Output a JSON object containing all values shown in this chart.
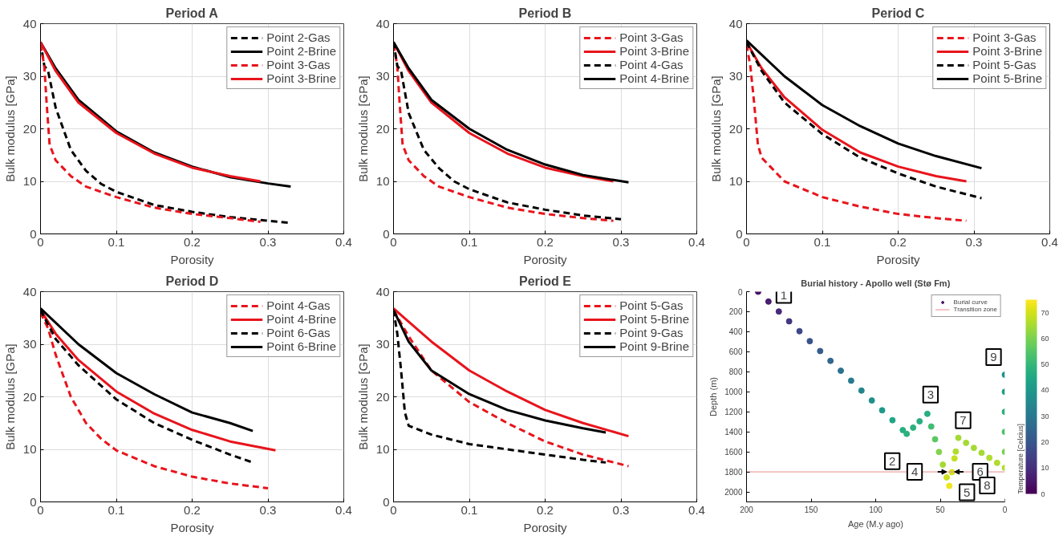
{
  "chart_data": [
    {
      "type": "line",
      "title": "Period A",
      "xlabel": "Porosity",
      "ylabel": "Bulk modulus [GPa]",
      "xlim": [
        0,
        0.4
      ],
      "ylim": [
        0,
        40
      ],
      "xticks": [
        0,
        0.1,
        0.2,
        0.3,
        0.4
      ],
      "yticks": [
        0,
        10,
        20,
        30,
        40
      ],
      "grid": true,
      "legend": "top right",
      "series": [
        {
          "name": "Point 2-Gas",
          "color": "#000000",
          "line_style": "dashed",
          "x": [
            0,
            0.005,
            0.01,
            0.02,
            0.04,
            0.06,
            0.08,
            0.1,
            0.15,
            0.2,
            0.25,
            0.3,
            0.33
          ],
          "values": [
            36.5,
            32,
            31,
            24,
            16,
            12,
            9.5,
            8,
            5.5,
            4.2,
            3.2,
            2.5,
            2.1
          ]
        },
        {
          "name": "Point 2-Brine",
          "color": "#000000",
          "line_style": "solid",
          "x": [
            0,
            0.02,
            0.05,
            0.1,
            0.15,
            0.2,
            0.25,
            0.3,
            0.33
          ],
          "values": [
            36.5,
            31.5,
            25.5,
            19.5,
            15.5,
            12.8,
            10.8,
            9.6,
            9
          ]
        },
        {
          "name": "Point 3-Gas",
          "color": "#e8141c",
          "line_style": "dashed",
          "x": [
            0,
            0.005,
            0.008,
            0.012,
            0.02,
            0.04,
            0.06,
            0.1,
            0.15,
            0.2,
            0.25,
            0.29
          ],
          "values": [
            36,
            32,
            25,
            17,
            14,
            11,
            9,
            7,
            5,
            3.8,
            3,
            2.3
          ]
        },
        {
          "name": "Point 3-Brine",
          "color": "#e8141c",
          "line_style": "solid",
          "x": [
            0,
            0.02,
            0.05,
            0.1,
            0.15,
            0.2,
            0.25,
            0.29
          ],
          "values": [
            36.5,
            31,
            25,
            19.2,
            15.3,
            12.6,
            11,
            10
          ]
        }
      ]
    },
    {
      "type": "line",
      "title": "Period B",
      "xlabel": "Porosity",
      "ylabel": "Bulk modulus [GPa]",
      "xlim": [
        0,
        0.4
      ],
      "ylim": [
        0,
        40
      ],
      "xticks": [
        0,
        0.1,
        0.2,
        0.3,
        0.4
      ],
      "yticks": [
        0,
        10,
        20,
        30,
        40
      ],
      "grid": true,
      "legend": "top right",
      "series": [
        {
          "name": "Point 3-Gas",
          "color": "#e8141c",
          "line_style": "dashed",
          "x": [
            0,
            0.005,
            0.008,
            0.012,
            0.02,
            0.04,
            0.06,
            0.1,
            0.15,
            0.2,
            0.25,
            0.29
          ],
          "values": [
            36,
            32,
            25,
            17,
            14,
            11,
            9,
            7,
            5,
            3.8,
            3,
            2.5
          ]
        },
        {
          "name": "Point 3-Brine",
          "color": "#e8141c",
          "line_style": "solid",
          "x": [
            0,
            0.02,
            0.05,
            0.1,
            0.15,
            0.2,
            0.25,
            0.29
          ],
          "values": [
            36.5,
            31,
            25,
            19.2,
            15.3,
            12.6,
            11,
            10
          ]
        },
        {
          "name": "Point 4-Gas",
          "color": "#000000",
          "line_style": "dashed",
          "x": [
            0,
            0.005,
            0.01,
            0.02,
            0.04,
            0.06,
            0.08,
            0.1,
            0.15,
            0.2,
            0.25,
            0.3
          ],
          "values": [
            36.5,
            32,
            31,
            23,
            16,
            12.5,
            10,
            8.5,
            6,
            4.6,
            3.5,
            2.8
          ]
        },
        {
          "name": "Point 4-Brine",
          "color": "#000000",
          "line_style": "solid",
          "x": [
            0,
            0.02,
            0.05,
            0.1,
            0.15,
            0.2,
            0.25,
            0.31
          ],
          "values": [
            36.5,
            31.5,
            25.5,
            20,
            16,
            13.2,
            11.2,
            9.8
          ]
        }
      ]
    },
    {
      "type": "line",
      "title": "Period C",
      "xlabel": "Porosity",
      "ylabel": "Bulk modulus [GPa]",
      "xlim": [
        0,
        0.4
      ],
      "ylim": [
        0,
        40
      ],
      "xticks": [
        0,
        0.1,
        0.2,
        0.3,
        0.4
      ],
      "yticks": [
        0,
        10,
        20,
        30,
        40
      ],
      "grid": true,
      "legend": "top right",
      "series": [
        {
          "name": "Point 3-Gas",
          "color": "#e8141c",
          "line_style": "dashed",
          "x": [
            0,
            0.005,
            0.01,
            0.015,
            0.02,
            0.05,
            0.1,
            0.15,
            0.2,
            0.25,
            0.29
          ],
          "values": [
            36,
            32,
            25,
            17,
            14.5,
            10,
            7,
            5.2,
            3.8,
            3,
            2.5
          ]
        },
        {
          "name": "Point 3-Brine",
          "color": "#e8141c",
          "line_style": "solid",
          "x": [
            0,
            0.02,
            0.05,
            0.1,
            0.15,
            0.2,
            0.25,
            0.29
          ],
          "values": [
            36.5,
            31.5,
            26,
            19.8,
            15.5,
            12.8,
            11,
            10
          ]
        },
        {
          "name": "Point 5-Gas",
          "color": "#000000",
          "line_style": "dashed",
          "x": [
            0,
            0.02,
            0.05,
            0.1,
            0.15,
            0.2,
            0.25,
            0.31
          ],
          "values": [
            36.5,
            31,
            25,
            19,
            14.5,
            11.5,
            9,
            6.8
          ]
        },
        {
          "name": "Point 5-Brine",
          "color": "#000000",
          "line_style": "solid",
          "x": [
            0,
            0.05,
            0.1,
            0.15,
            0.2,
            0.25,
            0.31
          ],
          "values": [
            36.8,
            30,
            24.5,
            20.5,
            17.2,
            14.8,
            12.5
          ]
        }
      ]
    },
    {
      "type": "line",
      "title": "Period D",
      "xlabel": "Porosity",
      "ylabel": "Bulk modulus [GPa]",
      "xlim": [
        0,
        0.4
      ],
      "ylim": [
        0,
        40
      ],
      "xticks": [
        0,
        0.1,
        0.2,
        0.3,
        0.4
      ],
      "yticks": [
        0,
        10,
        20,
        30,
        40
      ],
      "grid": true,
      "legend": "top right",
      "series": [
        {
          "name": "Point 4-Gas",
          "color": "#e8141c",
          "line_style": "dashed",
          "x": [
            0,
            0.01,
            0.02,
            0.04,
            0.06,
            0.08,
            0.1,
            0.15,
            0.2,
            0.25,
            0.3
          ],
          "values": [
            36,
            33,
            28,
            20,
            15,
            12,
            9.8,
            6.8,
            4.8,
            3.5,
            2.6
          ]
        },
        {
          "name": "Point 4-Brine",
          "color": "#e8141c",
          "line_style": "solid",
          "x": [
            0,
            0.02,
            0.05,
            0.1,
            0.15,
            0.2,
            0.25,
            0.31
          ],
          "values": [
            36.5,
            32,
            27,
            21,
            16.8,
            13.7,
            11.5,
            9.8
          ]
        },
        {
          "name": "Point 6-Gas",
          "color": "#000000",
          "line_style": "dashed",
          "x": [
            0,
            0.02,
            0.05,
            0.1,
            0.15,
            0.2,
            0.25,
            0.28
          ],
          "values": [
            36.5,
            31,
            26,
            19.5,
            15,
            11.8,
            9,
            7.5
          ]
        },
        {
          "name": "Point 6-Brine",
          "color": "#000000",
          "line_style": "solid",
          "x": [
            0,
            0.05,
            0.1,
            0.15,
            0.2,
            0.25,
            0.28
          ],
          "values": [
            36.8,
            30,
            24.5,
            20.5,
            17,
            15,
            13.5
          ]
        }
      ]
    },
    {
      "type": "line",
      "title": "Period E",
      "xlabel": "Porosity",
      "ylabel": "Bulk modulus [GPa]",
      "xlim": [
        0,
        0.4
      ],
      "ylim": [
        0,
        40
      ],
      "xticks": [
        0,
        0.1,
        0.2,
        0.3,
        0.4
      ],
      "yticks": [
        0,
        10,
        20,
        30,
        40
      ],
      "grid": true,
      "legend": "top right",
      "series": [
        {
          "name": "Point 5-Gas",
          "color": "#e8141c",
          "line_style": "dashed",
          "x": [
            0,
            0.02,
            0.05,
            0.1,
            0.15,
            0.2,
            0.25,
            0.31
          ],
          "values": [
            36.5,
            31.5,
            25,
            19,
            15,
            11.5,
            9,
            6.8
          ]
        },
        {
          "name": "Point 5-Brine",
          "color": "#e8141c",
          "line_style": "solid",
          "x": [
            0,
            0.05,
            0.1,
            0.15,
            0.2,
            0.25,
            0.31
          ],
          "values": [
            36.8,
            30.5,
            25,
            21,
            17.5,
            15,
            12.5
          ]
        },
        {
          "name": "Point 9-Gas",
          "color": "#000000",
          "line_style": "dashed",
          "x": [
            0,
            0.005,
            0.01,
            0.015,
            0.02,
            0.05,
            0.1,
            0.15,
            0.2,
            0.25,
            0.28
          ],
          "values": [
            36.5,
            32,
            25,
            17,
            14.5,
            12.8,
            11,
            10,
            9,
            8,
            7.5
          ]
        },
        {
          "name": "Point 9-Brine",
          "color": "#000000",
          "line_style": "solid",
          "x": [
            0,
            0.02,
            0.05,
            0.1,
            0.15,
            0.2,
            0.25,
            0.28
          ],
          "values": [
            36.5,
            30.5,
            25,
            20.5,
            17.5,
            15.5,
            14,
            13.2
          ]
        }
      ]
    },
    {
      "type": "scatter",
      "marker": "circle",
      "title": "Burial history - Apollo well (Stø Fm)",
      "xlabel": "Age (M.y ago)",
      "ylabel": "Depth (m)",
      "clabel": "Temperature [Celcius]",
      "xlim": [
        200,
        0
      ],
      "ylim": [
        2100,
        0
      ],
      "xticks": [
        200,
        150,
        100,
        50,
        0
      ],
      "yticks": [
        0,
        200,
        400,
        600,
        800,
        1000,
        1200,
        1400,
        1600,
        1800,
        2000
      ],
      "clim": [
        0,
        75
      ],
      "cticks": [
        0,
        10,
        20,
        30,
        40,
        50,
        60,
        70
      ],
      "grid": false,
      "legend": "top right",
      "series": [
        {
          "name": "Burial curve",
          "x": [
            191,
            183,
            175,
            167,
            159,
            151,
            143,
            135,
            127,
            119,
            111,
            103,
            95,
            87,
            79,
            76,
            71,
            66,
            60,
            57,
            54,
            51,
            48,
            45,
            43,
            41,
            39,
            38,
            36,
            30,
            24,
            18,
            12,
            6,
            0,
            0,
            0,
            0,
            0,
            0
          ],
          "values": [
            0,
            99,
            198,
            296,
            395,
            494,
            593,
            691,
            790,
            889,
            988,
            1087,
            1185,
            1284,
            1383,
            1420,
            1358,
            1295,
            1220,
            1347,
            1474,
            1601,
            1728,
            1855,
            1940,
            1803,
            1666,
            1597,
            1460,
            1510,
            1560,
            1610,
            1660,
            1710,
            1760,
            1600,
            1400,
            1200,
            1000,
            830
          ],
          "cvalues": [
            3,
            6,
            9,
            12,
            16,
            19,
            22,
            25,
            28,
            31,
            34,
            37,
            41,
            44,
            47,
            48,
            48,
            47,
            47,
            52,
            56,
            61,
            65,
            69,
            73,
            70,
            68,
            66,
            65,
            65,
            65,
            65,
            66,
            66,
            66,
            60,
            54,
            48,
            42,
            38
          ]
        }
      ],
      "ref_lines": [
        {
          "axis": "y",
          "value": 1800,
          "label": "Transition zone",
          "color": "#e88a8a"
        }
      ],
      "annotations": [
        {
          "text": "1",
          "x": 191,
          "y": 0
        },
        {
          "text": "2",
          "x": 76,
          "y": 1420
        },
        {
          "text": "3",
          "x": 60,
          "y": 1220
        },
        {
          "text": "4",
          "x": 45,
          "y": 1800
        },
        {
          "text": "5",
          "x": 43,
          "y": 1940
        },
        {
          "text": "6",
          "x": 39,
          "y": 1800
        },
        {
          "text": "7",
          "x": 36,
          "y": 1460
        },
        {
          "text": "8",
          "x": 0,
          "y": 1760
        },
        {
          "text": "9",
          "x": 0,
          "y": 830
        }
      ]
    }
  ]
}
